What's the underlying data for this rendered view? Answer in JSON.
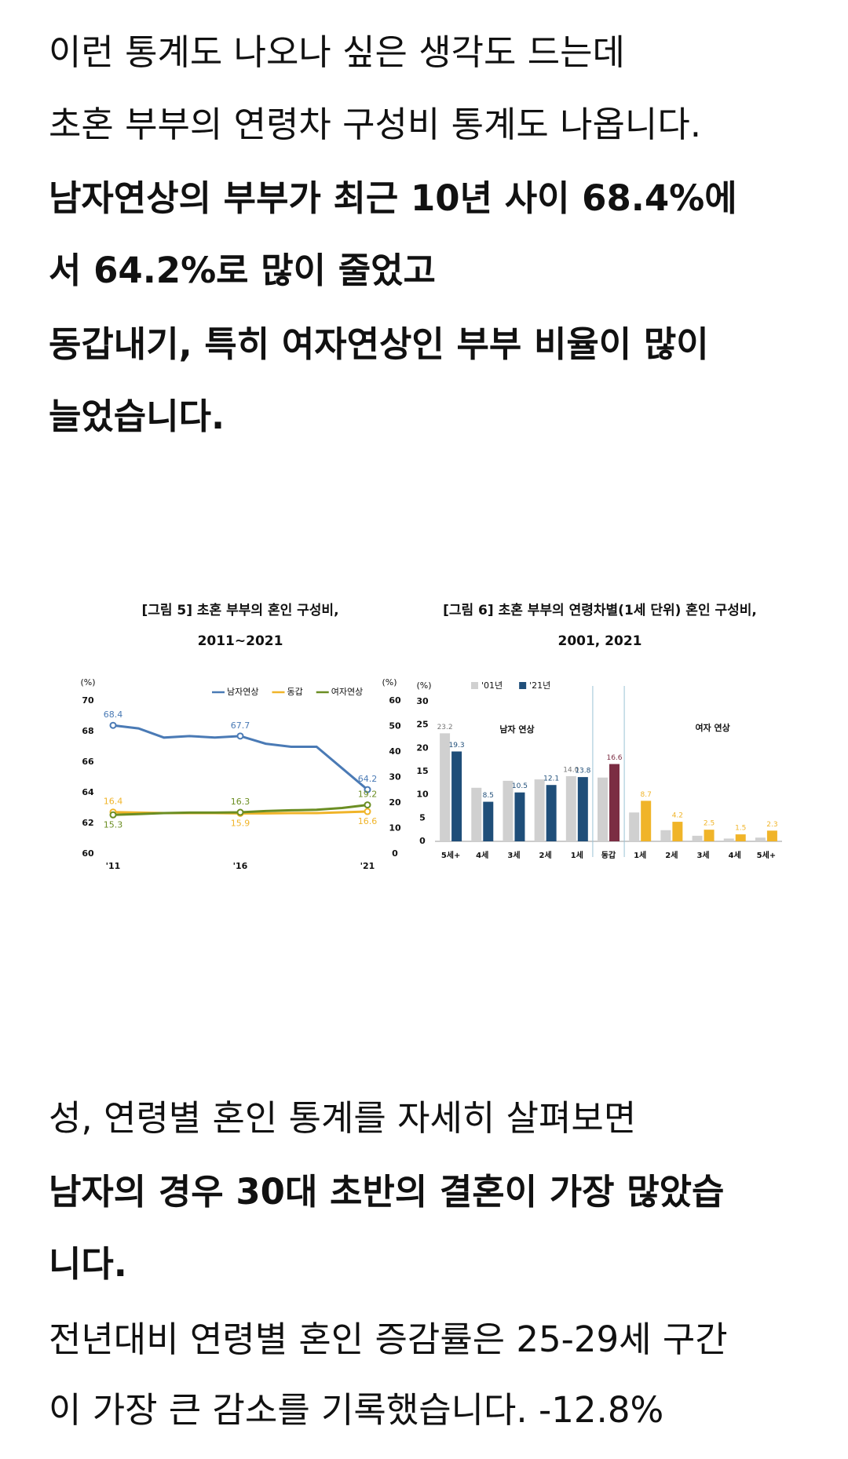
{
  "text_before": [
    {
      "text": "이런 통계도 나오나 싶은 생각도 드는데",
      "bold": false
    },
    {
      "text": "초혼 부부의 연령차 구성비 통계도 나옵니다.",
      "bold": false
    },
    {
      "text": "남자연상의 부부가 최근 10년 사이 68.4%에",
      "bold": true
    },
    {
      "text": "서 64.2%로 많이 줄었고",
      "bold": true
    },
    {
      "text": "동갑내기, 특히 여자연상인 부부 비율이 많이",
      "bold": true
    },
    {
      "text": "늘었습니다.",
      "bold": true
    }
  ],
  "chart_data": [
    {
      "type": "line",
      "title": "[그림 5] 초혼 부부의 혼인 구성비,",
      "subtitle": "2011~2021",
      "y_label": "(%)",
      "y2_label": "(%)",
      "categories": [
        "'11",
        null,
        null,
        null,
        null,
        "'16",
        null,
        null,
        null,
        null,
        "'21"
      ],
      "ylim": [
        60,
        70
      ],
      "yticks": [
        60,
        62,
        64,
        66,
        68,
        70
      ],
      "y2lim": [
        0,
        60
      ],
      "y2ticks": [
        0,
        10,
        20,
        30,
        40,
        50,
        60
      ],
      "legend": "top-right",
      "series": [
        {
          "name": "남자연상",
          "color": "#4a7ab5",
          "values": [
            68.4,
            68.2,
            67.6,
            67.7,
            67.6,
            67.7,
            67.2,
            67.0,
            67.0,
            65.6,
            64.2
          ],
          "value_labels": [
            "68.4",
            null,
            null,
            null,
            null,
            "67.7",
            null,
            null,
            null,
            null,
            "64.2"
          ]
        },
        {
          "name": "동갑",
          "color": "#f0b429",
          "axis": "y2",
          "values": [
            16.4,
            16.2,
            16.0,
            16.0,
            16.0,
            15.9,
            15.9,
            16.0,
            16.0,
            16.3,
            16.6
          ],
          "value_labels": [
            "16.4",
            null,
            null,
            null,
            null,
            "15.9",
            null,
            null,
            null,
            null,
            "16.6"
          ]
        },
        {
          "name": "여자연상",
          "color": "#6b8e23",
          "axis": "y2",
          "values": [
            15.3,
            15.6,
            16.0,
            16.2,
            16.2,
            16.3,
            16.8,
            17.1,
            17.3,
            18.0,
            19.2
          ],
          "value_labels": [
            "15.3",
            null,
            null,
            null,
            null,
            "16.3",
            null,
            null,
            null,
            null,
            "19.2"
          ]
        }
      ]
    },
    {
      "type": "bar",
      "title": "[그림 6] 초혼 부부의 연령차별(1세 단위) 혼인 구성비,",
      "subtitle": "2001,  2021",
      "y_label": "(%)",
      "categories": [
        "5세+",
        "4세",
        "3세",
        "2세",
        "1세",
        "동갑",
        "1세",
        "2세",
        "3세",
        "4세",
        "5세+"
      ],
      "ylim": [
        0,
        30
      ],
      "yticks": [
        0,
        5,
        10,
        15,
        20,
        25,
        30
      ],
      "legend": "top-left",
      "annotations": [
        "남자 연상",
        "여자 연상"
      ],
      "series": [
        {
          "name": "'01년",
          "color": "#d0d0d0",
          "values": [
            23.2,
            11.5,
            13.0,
            13.3,
            14.0,
            13.7,
            6.2,
            2.4,
            1.2,
            0.6,
            0.8
          ],
          "value_labels": [
            "23.2",
            null,
            null,
            null,
            "14.0",
            null,
            null,
            null,
            null,
            null,
            null
          ]
        },
        {
          "name": "'21년",
          "color": "#1f4e79",
          "colors": [
            "#1f4e79",
            "#1f4e79",
            "#1f4e79",
            "#1f4e79",
            "#1f4e79",
            "#7b2d43",
            "#f0b429",
            "#f0b429",
            "#f0b429",
            "#f0b429",
            "#f0b429"
          ],
          "values": [
            19.3,
            8.5,
            10.5,
            12.1,
            13.8,
            16.6,
            8.7,
            4.2,
            2.5,
            1.5,
            2.3
          ],
          "value_labels": [
            "19.3",
            "8.5",
            "10.5",
            "12.1",
            "13.8",
            "16.6",
            "8.7",
            "4.2",
            "2.5",
            "1.5",
            "2.3"
          ]
        }
      ]
    }
  ],
  "text_after": [
    {
      "text": "성, 연령별 혼인 통계를 자세히 살펴보면",
      "bold": false
    },
    {
      "text": "남자의 경우 30대 초반의 결혼이 가장 많았습",
      "bold": true
    },
    {
      "text": "니다.",
      "bold": true
    },
    {
      "text": "전년대비 연령별 혼인 증감률은 25-29세 구간",
      "bold": false
    },
    {
      "text": "이 가장 큰 감소를 기록했습니다. -12.8%",
      "bold": false
    }
  ]
}
